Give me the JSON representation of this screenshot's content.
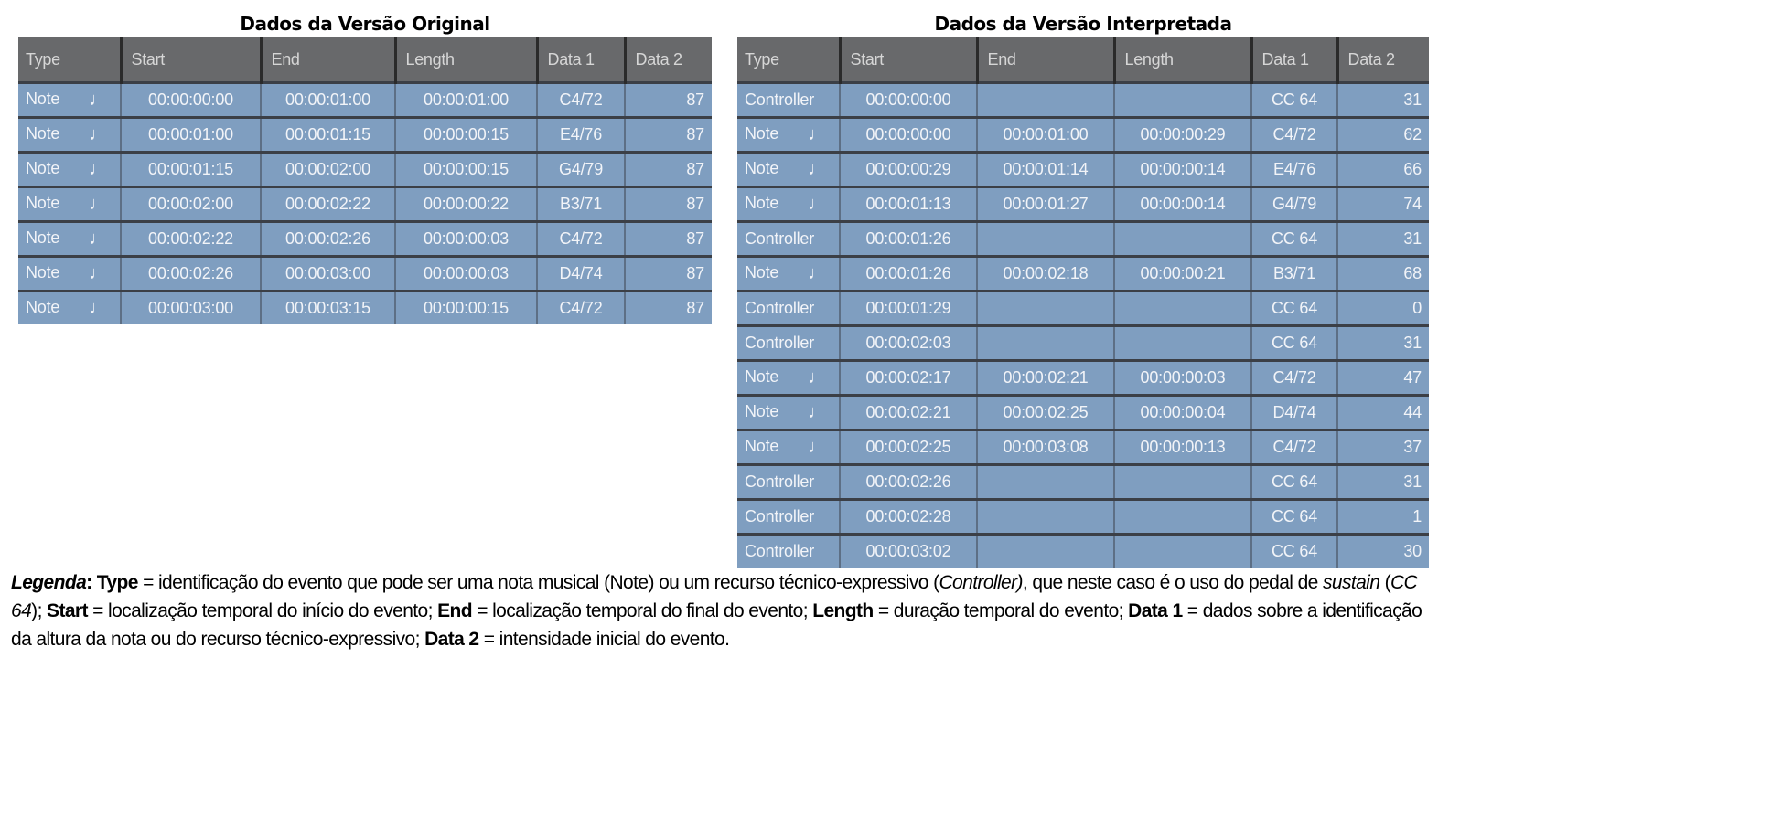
{
  "original": {
    "title": "Dados da Versão Original",
    "columns": [
      "Type",
      "Start",
      "End",
      "Length",
      "Data 1",
      "Data 2"
    ],
    "rows": [
      {
        "type": "Note",
        "start": "00:00:00:00",
        "end": "00:00:01:00",
        "length": "00:00:01:00",
        "data1": "C4/72",
        "data2": "87"
      },
      {
        "type": "Note",
        "start": "00:00:01:00",
        "end": "00:00:01:15",
        "length": "00:00:00:15",
        "data1": "E4/76",
        "data2": "87"
      },
      {
        "type": "Note",
        "start": "00:00:01:15",
        "end": "00:00:02:00",
        "length": "00:00:00:15",
        "data1": "G4/79",
        "data2": "87"
      },
      {
        "type": "Note",
        "start": "00:00:02:00",
        "end": "00:00:02:22",
        "length": "00:00:00:22",
        "data1": "B3/71",
        "data2": "87"
      },
      {
        "type": "Note",
        "start": "00:00:02:22",
        "end": "00:00:02:26",
        "length": "00:00:00:03",
        "data1": "C4/72",
        "data2": "87"
      },
      {
        "type": "Note",
        "start": "00:00:02:26",
        "end": "00:00:03:00",
        "length": "00:00:00:03",
        "data1": "D4/74",
        "data2": "87"
      },
      {
        "type": "Note",
        "start": "00:00:03:00",
        "end": "00:00:03:15",
        "length": "00:00:00:15",
        "data1": "C4/72",
        "data2": "87"
      }
    ]
  },
  "interpreted": {
    "title": "Dados da Versão Interpretada",
    "columns": [
      "Type",
      "Start",
      "End",
      "Length",
      "Data 1",
      "Data 2"
    ],
    "rows": [
      {
        "type": "Controller",
        "start": "00:00:00:00",
        "end": "",
        "length": "",
        "data1": "CC 64",
        "data2": "31"
      },
      {
        "type": "Note",
        "start": "00:00:00:00",
        "end": "00:00:01:00",
        "length": "00:00:00:29",
        "data1": "C4/72",
        "data2": "62"
      },
      {
        "type": "Note",
        "start": "00:00:00:29",
        "end": "00:00:01:14",
        "length": "00:00:00:14",
        "data1": "E4/76",
        "data2": "66"
      },
      {
        "type": "Note",
        "start": "00:00:01:13",
        "end": "00:00:01:27",
        "length": "00:00:00:14",
        "data1": "G4/79",
        "data2": "74"
      },
      {
        "type": "Controller",
        "start": "00:00:01:26",
        "end": "",
        "length": "",
        "data1": "CC 64",
        "data2": "31"
      },
      {
        "type": "Note",
        "start": "00:00:01:26",
        "end": "00:00:02:18",
        "length": "00:00:00:21",
        "data1": "B3/71",
        "data2": "68"
      },
      {
        "type": "Controller",
        "start": "00:00:01:29",
        "end": "",
        "length": "",
        "data1": "CC 64",
        "data2": "0"
      },
      {
        "type": "Controller",
        "start": "00:00:02:03",
        "end": "",
        "length": "",
        "data1": "CC 64",
        "data2": "31"
      },
      {
        "type": "Note",
        "start": "00:00:02:17",
        "end": "00:00:02:21",
        "length": "00:00:00:03",
        "data1": "C4/72",
        "data2": "47"
      },
      {
        "type": "Note",
        "start": "00:00:02:21",
        "end": "00:00:02:25",
        "length": "00:00:00:04",
        "data1": "D4/74",
        "data2": "44"
      },
      {
        "type": "Note",
        "start": "00:00:02:25",
        "end": "00:00:03:08",
        "length": "00:00:00:13",
        "data1": "C4/72",
        "data2": "37"
      },
      {
        "type": "Controller",
        "start": "00:00:02:26",
        "end": "",
        "length": "",
        "data1": "CC 64",
        "data2": "31"
      },
      {
        "type": "Controller",
        "start": "00:00:02:28",
        "end": "",
        "length": "",
        "data1": "CC 64",
        "data2": "1"
      },
      {
        "type": "Controller",
        "start": "00:00:03:02",
        "end": "",
        "length": "",
        "data1": "CC 64",
        "data2": "30"
      }
    ]
  },
  "icons": {
    "note": "quarter-note-icon",
    "glyph": "♩"
  },
  "colors": {
    "header_bg": "#68696b",
    "row_bg": "#7f9ec0",
    "cell_text": "#f2f4f8"
  },
  "legend": [
    {
      "t": "Legenda",
      "b": true,
      "i": true
    },
    {
      "t": ": ",
      "b": true
    },
    {
      "t": "Type",
      "b": true
    },
    {
      "t": " = identificação do evento que pode ser uma nota musical (Note) ou um recurso técnico-expressivo ("
    },
    {
      "t": "Controller)",
      "i": true
    },
    {
      "t": ", que neste caso é o uso do pedal de "
    },
    {
      "t": "sustain",
      "i": true
    },
    {
      "t": " ("
    },
    {
      "t": "CC 64",
      "i": true
    },
    {
      "t": "); "
    },
    {
      "t": "Start",
      "b": true
    },
    {
      "t": " = localização temporal do início do evento; "
    },
    {
      "t": "End",
      "b": true
    },
    {
      "t": " = localização temporal do final do evento; "
    },
    {
      "t": "Length",
      "b": true
    },
    {
      "t": " = duração temporal do evento; "
    },
    {
      "t": "Data 1",
      "b": true
    },
    {
      "t": " = dados sobre a identificação da altura da nota ou do recurso técnico-expressivo; "
    },
    {
      "t": "Data 2",
      "b": true
    },
    {
      "t": " = intensidade inicial do evento."
    }
  ]
}
